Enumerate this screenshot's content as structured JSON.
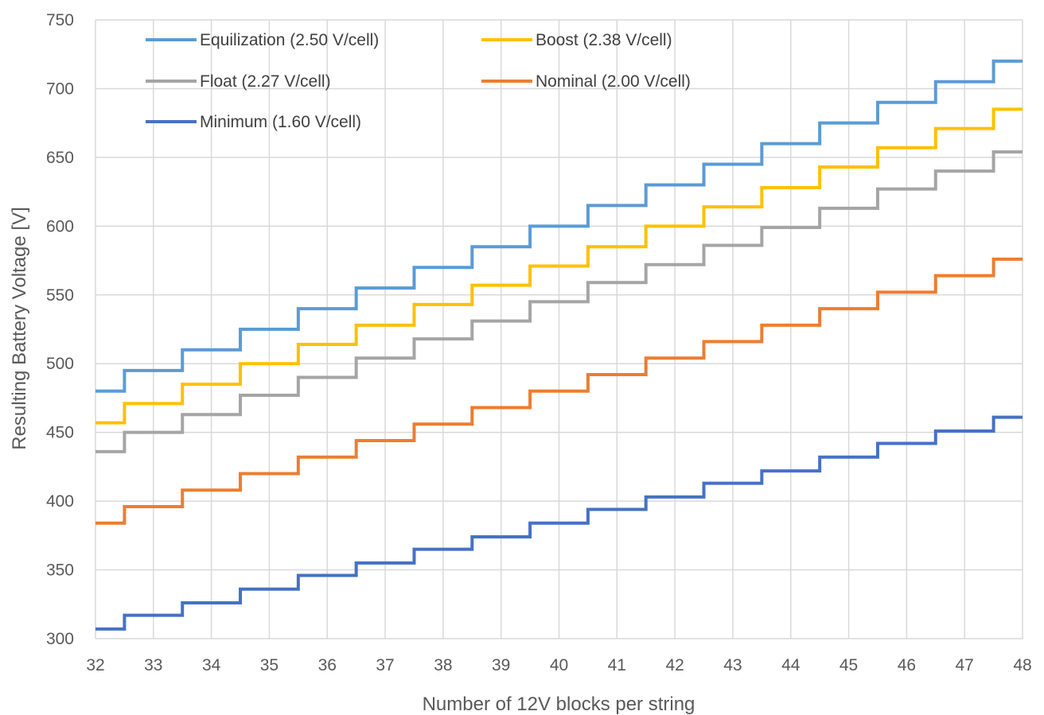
{
  "chart_data": {
    "type": "line",
    "step": true,
    "xlabel": "Number of 12V blocks per string",
    "ylabel": "Resulting Battery Voltage [V]",
    "xlim": [
      32,
      48
    ],
    "ylim": [
      300,
      750
    ],
    "x_ticks": [
      "32",
      "33",
      "34",
      "35",
      "36",
      "37",
      "38",
      "39",
      "40",
      "41",
      "42",
      "43",
      "44",
      "45",
      "46",
      "47",
      "48"
    ],
    "y_ticks": [
      "300",
      "350",
      "400",
      "450",
      "500",
      "550",
      "600",
      "650",
      "700",
      "750"
    ],
    "grid": true,
    "legend_position": "top-left",
    "x": [
      32,
      33,
      34,
      35,
      36,
      37,
      38,
      39,
      40,
      41,
      42,
      43,
      44,
      45,
      46,
      47,
      48
    ],
    "series": [
      {
        "name": "Equilization (2.50 V/cell)",
        "color": "#5b9bd5",
        "values": [
          480,
          495,
          510,
          525,
          540,
          555,
          570,
          585,
          600,
          615,
          630,
          645,
          660,
          675,
          690,
          705,
          720
        ]
      },
      {
        "name": "Boost (2.38 V/cell)",
        "color": "#ffc000",
        "values": [
          457,
          471,
          485,
          500,
          514,
          528,
          543,
          557,
          571,
          585,
          600,
          614,
          628,
          643,
          657,
          671,
          685
        ]
      },
      {
        "name": "Float (2.27 V/cell)",
        "color": "#a5a5a5",
        "values": [
          436,
          450,
          463,
          477,
          490,
          504,
          518,
          531,
          545,
          559,
          572,
          586,
          599,
          613,
          627,
          640,
          654
        ]
      },
      {
        "name": "Nominal (2.00 V/cell)",
        "color": "#ed7d31",
        "values": [
          384,
          396,
          408,
          420,
          432,
          444,
          456,
          468,
          480,
          492,
          504,
          516,
          528,
          540,
          552,
          564,
          576
        ]
      },
      {
        "name": "Minimum (1.60 V/cell)",
        "color": "#4472c4",
        "values": [
          307,
          317,
          326,
          336,
          346,
          355,
          365,
          374,
          384,
          394,
          403,
          413,
          422,
          432,
          442,
          451,
          461
        ]
      }
    ]
  }
}
